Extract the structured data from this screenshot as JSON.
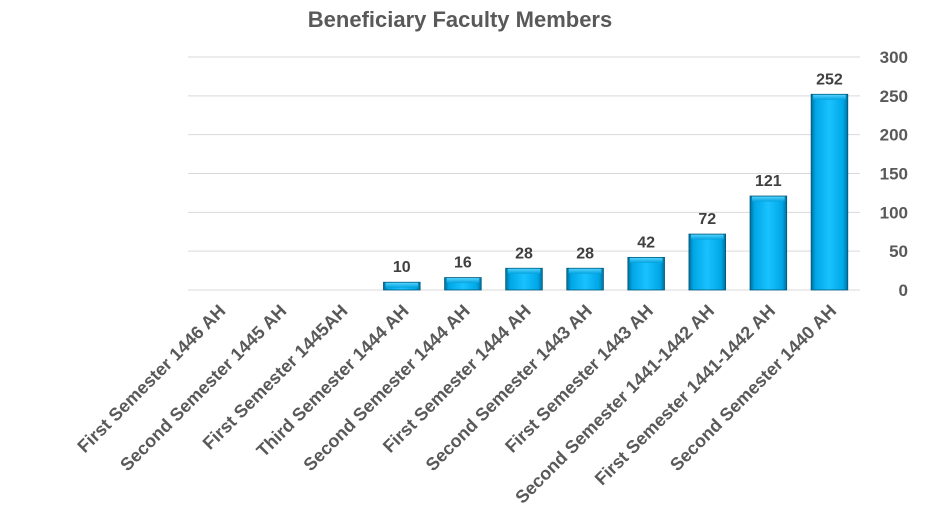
{
  "chart_data": {
    "type": "bar",
    "title": "Beneficiary Faculty Members",
    "categories": [
      "First Semester 1446 AH",
      "Second Semester 1445 AH",
      "First Semester 1445AH",
      "Third Semester 1444 AH",
      "Second Semester 1444 AH",
      "First Semester 1444 AH",
      "Second Semester 1443 AH",
      "First Semester 1443 AH",
      "Second Semester 1441-1442 AH",
      "First Semester 1441-1442 AH",
      "Second Semester 1440 AH"
    ],
    "values": [
      null,
      null,
      null,
      10,
      16,
      28,
      28,
      42,
      72,
      121,
      252
    ],
    "data_labels": [
      "",
      "",
      "",
      "10",
      "16",
      "28",
      "28",
      "42",
      "72",
      "121",
      "252"
    ],
    "xlabel": "",
    "ylabel": "",
    "ylim": [
      0,
      300
    ],
    "yticks": [
      "0",
      "50",
      "100",
      "150",
      "200",
      "250",
      "300"
    ],
    "y_axis_side": "right",
    "grid": true,
    "legend": "none",
    "bar_color": "#00b0f0"
  }
}
